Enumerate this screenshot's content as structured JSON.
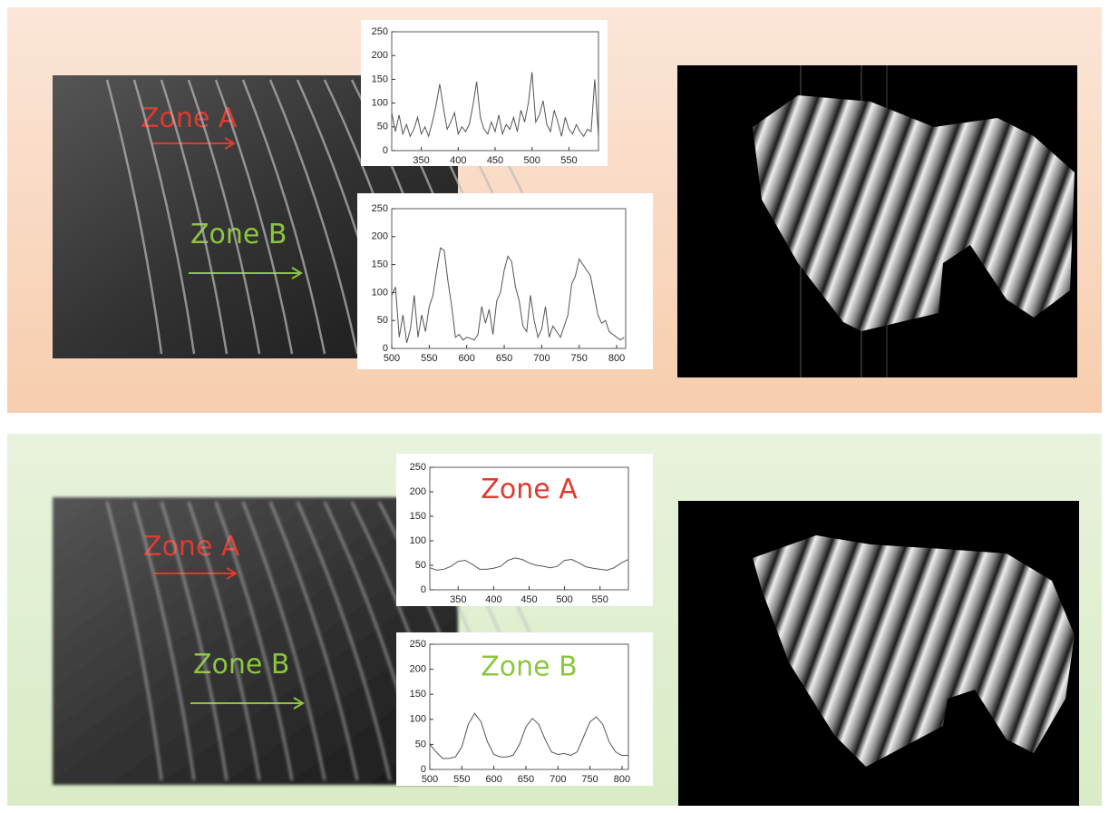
{
  "panels": [
    {
      "zone_a": "Zone A",
      "zone_b": "Zone B"
    },
    {
      "zone_a": "Zone A",
      "zone_b": "Zone B"
    }
  ],
  "chart_data": [
    {
      "type": "line",
      "xlim": [
        310,
        590
      ],
      "xticks": [
        350,
        400,
        450,
        500,
        550
      ],
      "ylim": [
        0,
        250
      ],
      "yticks": [
        0,
        50,
        100,
        150,
        200,
        250
      ],
      "x": [
        310,
        315,
        320,
        325,
        330,
        335,
        340,
        345,
        350,
        355,
        360,
        365,
        370,
        375,
        380,
        385,
        390,
        395,
        400,
        405,
        410,
        415,
        420,
        425,
        430,
        435,
        440,
        445,
        450,
        455,
        460,
        465,
        470,
        475,
        480,
        485,
        490,
        495,
        500,
        505,
        510,
        515,
        520,
        525,
        530,
        535,
        540,
        545,
        550,
        555,
        560,
        565,
        570,
        575,
        580,
        585,
        590
      ],
      "series": [
        {
          "color": "#555555",
          "values": [
            80,
            40,
            75,
            35,
            55,
            30,
            45,
            70,
            35,
            50,
            30,
            60,
            95,
            140,
            90,
            45,
            60,
            80,
            35,
            50,
            40,
            55,
            95,
            145,
            70,
            45,
            35,
            60,
            40,
            75,
            35,
            55,
            45,
            70,
            40,
            85,
            60,
            100,
            165,
            60,
            75,
            105,
            55,
            40,
            85,
            60,
            30,
            70,
            45,
            35,
            55,
            40,
            30,
            45,
            40,
            150,
            30
          ]
        }
      ]
    },
    {
      "type": "line",
      "xlim": [
        500,
        812
      ],
      "xticks": [
        500,
        550,
        600,
        650,
        700,
        750,
        800
      ],
      "ylim": [
        0,
        250
      ],
      "yticks": [
        0,
        50,
        100,
        150,
        200,
        250
      ],
      "x": [
        500,
        505,
        510,
        515,
        520,
        525,
        530,
        535,
        540,
        545,
        550,
        555,
        560,
        565,
        570,
        575,
        580,
        585,
        590,
        595,
        600,
        605,
        610,
        615,
        620,
        625,
        630,
        635,
        640,
        645,
        650,
        655,
        660,
        665,
        670,
        675,
        680,
        685,
        690,
        695,
        700,
        705,
        710,
        715,
        720,
        725,
        730,
        735,
        740,
        745,
        750,
        755,
        760,
        765,
        770,
        775,
        780,
        785,
        790,
        795,
        800,
        805,
        810
      ],
      "series": [
        {
          "color": "#555555",
          "values": [
            95,
            110,
            20,
            60,
            10,
            35,
            95,
            20,
            60,
            30,
            75,
            95,
            140,
            180,
            175,
            120,
            75,
            20,
            25,
            15,
            20,
            18,
            15,
            25,
            75,
            45,
            70,
            25,
            85,
            100,
            140,
            165,
            155,
            110,
            85,
            40,
            30,
            95,
            50,
            20,
            35,
            75,
            20,
            40,
            30,
            20,
            40,
            60,
            115,
            130,
            160,
            150,
            140,
            130,
            95,
            60,
            45,
            50,
            30,
            25,
            20,
            15,
            20
          ]
        }
      ]
    },
    {
      "type": "line",
      "title": "Zone A",
      "title_color": "#e03a2f",
      "xlim": [
        310,
        590
      ],
      "xticks": [
        350,
        400,
        450,
        500,
        550
      ],
      "ylim": [
        0,
        250
      ],
      "yticks": [
        0,
        50,
        100,
        150,
        200,
        250
      ],
      "x": [
        310,
        320,
        330,
        340,
        350,
        360,
        370,
        380,
        390,
        400,
        410,
        420,
        430,
        440,
        450,
        460,
        470,
        480,
        490,
        500,
        510,
        520,
        530,
        540,
        550,
        560,
        570,
        580,
        590
      ],
      "series": [
        {
          "color": "#555555",
          "values": [
            45,
            40,
            42,
            48,
            58,
            60,
            52,
            42,
            42,
            44,
            48,
            60,
            65,
            62,
            55,
            50,
            48,
            45,
            48,
            60,
            62,
            55,
            47,
            44,
            42,
            40,
            45,
            55,
            62
          ]
        }
      ]
    },
    {
      "type": "line",
      "title": "Zone B",
      "title_color": "#8cc63f",
      "xlim": [
        500,
        810
      ],
      "xticks": [
        500,
        550,
        600,
        650,
        700,
        750,
        800
      ],
      "ylim": [
        0,
        250
      ],
      "yticks": [
        0,
        50,
        100,
        150,
        200,
        250
      ],
      "x": [
        500,
        510,
        520,
        530,
        540,
        550,
        560,
        570,
        580,
        590,
        600,
        610,
        620,
        630,
        640,
        650,
        660,
        670,
        680,
        690,
        700,
        710,
        720,
        730,
        740,
        750,
        760,
        770,
        780,
        790,
        800,
        810
      ],
      "series": [
        {
          "color": "#555555",
          "values": [
            50,
            35,
            22,
            22,
            25,
            45,
            90,
            112,
            95,
            55,
            30,
            25,
            25,
            28,
            50,
            85,
            102,
            90,
            60,
            35,
            30,
            32,
            28,
            35,
            65,
            95,
            105,
            90,
            55,
            35,
            28,
            28
          ]
        }
      ]
    }
  ]
}
